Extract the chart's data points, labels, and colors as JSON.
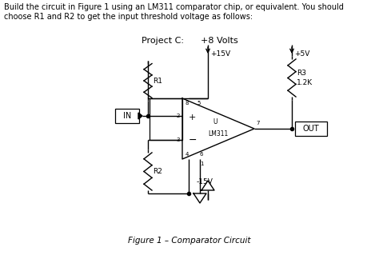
{
  "bg_color": "#ffffff",
  "text_color": "#000000",
  "header_line1": "Build the circuit in Figure 1 using an LM311 comparator chip, or equivalent. You should",
  "header_line2": "choose R1 and R2 to get the input threshold voltage as follows:",
  "title_text": "Project C:      +8 Volts",
  "caption_text": "Figure 1 – Comparator Circuit",
  "line_color": "#000000"
}
